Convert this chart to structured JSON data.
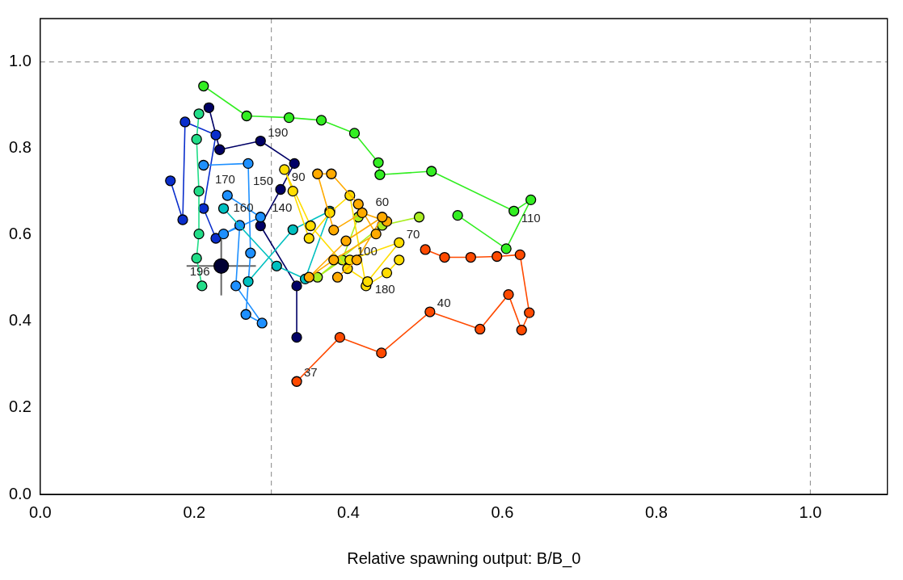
{
  "chart_data": {
    "type": "line",
    "xlabel": "Relative spawning output: B/B_0",
    "xlim": [
      0,
      1.1
    ],
    "ylim": [
      0,
      1.1
    ],
    "xticks": [
      {
        "value": 0,
        "label": "0.0"
      },
      {
        "value": 0.2,
        "label": "0.2"
      },
      {
        "value": 0.4,
        "label": "0.4"
      },
      {
        "value": 0.6,
        "label": "0.6"
      },
      {
        "value": 0.8,
        "label": "0.8"
      },
      {
        "value": 1,
        "label": "1.0"
      }
    ],
    "yticks": [
      {
        "value": 0,
        "label": "0.0"
      },
      {
        "value": 0.2,
        "label": "0.2"
      },
      {
        "value": 0.4,
        "label": "0.4"
      },
      {
        "value": 0.6,
        "label": "0.6"
      },
      {
        "value": 0.8,
        "label": "0.8"
      },
      {
        "value": 1,
        "label": "1.0"
      }
    ],
    "grid": false,
    "legend": false,
    "marker": "circle",
    "line_style": "solid",
    "ref_lines": [
      {
        "axis": "x",
        "value": 0.3,
        "color": "#999999",
        "line_style": "dashed"
      },
      {
        "axis": "x",
        "value": 1.0,
        "color": "#999999",
        "line_style": "dashed"
      },
      {
        "axis": "y",
        "value": 1.0,
        "color": "#999999",
        "line_style": "dashed"
      }
    ],
    "series": [
      {
        "color": "#ff4a00",
        "x": [
          0.333,
          0.389,
          0.443,
          0.506,
          0.571,
          0.608,
          0.625,
          0.635,
          0.623,
          0.593,
          0.559,
          0.525,
          0.5
        ],
        "values": [
          0.261,
          0.363,
          0.327,
          0.422,
          0.382,
          0.462,
          0.38,
          0.42,
          0.554,
          0.55,
          0.548,
          0.548,
          0.566
        ]
      },
      {
        "color": "#ffaa00",
        "x": [
          0.45,
          0.418,
          0.381,
          0.36,
          0.378,
          0.413,
          0.436,
          0.381,
          0.349,
          0.397,
          0.444,
          0.411,
          0.386
        ],
        "values": [
          0.631,
          0.651,
          0.611,
          0.741,
          0.741,
          0.671,
          0.602,
          0.542,
          0.502,
          0.586,
          0.641,
          0.542,
          0.502
        ]
      },
      {
        "color": "#ffdd00",
        "x": [
          0.466,
          0.45,
          0.423,
          0.402,
          0.376,
          0.349,
          0.328,
          0.317,
          0.351,
          0.399,
          0.425,
          0.466,
          0.402
        ],
        "values": [
          0.542,
          0.512,
          0.482,
          0.691,
          0.651,
          0.592,
          0.701,
          0.751,
          0.621,
          0.522,
          0.492,
          0.582,
          0.542
        ]
      },
      {
        "color": "#aaee22",
        "x": [
          0.413,
          0.392,
          0.36,
          0.444,
          0.492
        ],
        "values": [
          0.641,
          0.542,
          0.502,
          0.622,
          0.641
        ]
      },
      {
        "color": "#33ee22",
        "x": [
          0.542,
          0.605,
          0.637,
          0.615,
          0.508,
          0.441,
          0.439,
          0.408,
          0.365,
          0.323,
          0.268,
          0.212
        ],
        "values": [
          0.645,
          0.568,
          0.681,
          0.655,
          0.747,
          0.739,
          0.767,
          0.835,
          0.865,
          0.871,
          0.875,
          0.944
        ]
      },
      {
        "color": "#22dd88",
        "x": [
          0.206,
          0.203,
          0.206,
          0.206,
          0.203,
          0.21
        ],
        "values": [
          0.88,
          0.821,
          0.701,
          0.602,
          0.546,
          0.482
        ]
      },
      {
        "color": "#00c0c0",
        "x": [
          0.238,
          0.307,
          0.344,
          0.376,
          0.328,
          0.27
        ],
        "values": [
          0.661,
          0.528,
          0.498,
          0.655,
          0.612,
          0.492
        ]
      },
      {
        "color": "#1e90ff",
        "x": [
          0.212,
          0.27,
          0.273,
          0.267,
          0.288,
          0.254,
          0.259,
          0.238,
          0.286,
          0.243
        ],
        "values": [
          0.761,
          0.765,
          0.558,
          0.416,
          0.396,
          0.482,
          0.622,
          0.602,
          0.641,
          0.691
        ]
      },
      {
        "color": "#0a2ecc",
        "x": [
          0.169,
          0.185,
          0.188,
          0.228,
          0.212,
          0.228
        ],
        "values": [
          0.725,
          0.635,
          0.861,
          0.831,
          0.661,
          0.592
        ]
      },
      {
        "color": "#000066",
        "x": [
          0.219,
          0.233,
          0.286,
          0.33,
          0.312,
          0.286,
          0.333,
          0.333
        ],
        "values": [
          0.894,
          0.797,
          0.817,
          0.765,
          0.705,
          0.621,
          0.482,
          0.363
        ]
      },
      {
        "color": "#000033",
        "type": "scatter",
        "x": [
          0.235
        ],
        "values": [
          0.528
        ],
        "errors": [
          [
            0.46,
            0.59
          ]
        ],
        "xerrors": [
          [
            0.19,
            0.28
          ]
        ]
      }
    ],
    "annotations": [
      {
        "text": "37",
        "x": 0.333,
        "y": 0.261
      },
      {
        "text": "40",
        "x": 0.506,
        "y": 0.422
      },
      {
        "text": "60",
        "x": 0.444,
        "y": 0.641
      },
      {
        "text": "70",
        "x": 0.466,
        "y": 0.582
      },
      {
        "text": "90",
        "x": 0.317,
        "y": 0.751
      },
      {
        "text": "100",
        "x": 0.402,
        "y": 0.542
      },
      {
        "text": "110",
        "x": 0.615,
        "y": 0.655
      },
      {
        "text": "140",
        "x": 0.286,
        "y": 0.621
      },
      {
        "text": "150",
        "x": 0.312,
        "y": 0.705
      },
      {
        "text": "160",
        "x": 0.238,
        "y": 0.661
      },
      {
        "text": "170",
        "x": 0.24,
        "y": 0.761
      },
      {
        "text": "180",
        "x": 0.425,
        "y": 0.492
      },
      {
        "text": "190",
        "x": 0.286,
        "y": 0.817
      },
      {
        "text": "196",
        "x": 0.235,
        "y": 0.555
      }
    ]
  }
}
